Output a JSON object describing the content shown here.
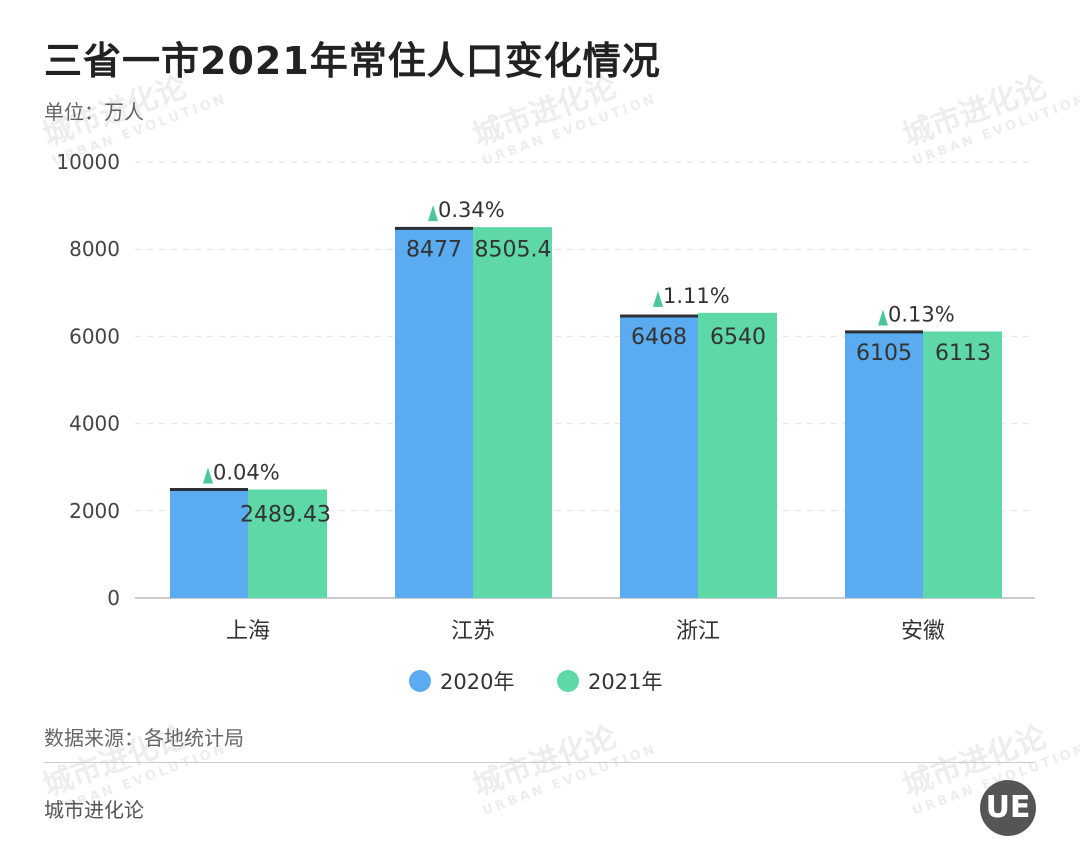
{
  "chart_data": {
    "type": "bar",
    "title": "三省一市2021年常住人口变化情况",
    "unit_label": "单位：万人",
    "categories": [
      "上海",
      "江苏",
      "浙江",
      "安徽"
    ],
    "series": [
      {
        "name": "2020年",
        "color": "#5aabf0",
        "values": [
          2488.4,
          8477,
          6468,
          6105
        ],
        "labels": [
          "",
          "8477",
          "6468",
          "6105"
        ]
      },
      {
        "name": "2021年",
        "color": "#5fd8a8",
        "values": [
          2489.43,
          8505.4,
          6540,
          6113
        ],
        "labels": [
          "2489.43",
          "8505.4",
          "6540",
          "6113"
        ]
      }
    ],
    "growth_labels": [
      "0.04%",
      "0.34%",
      "1.11%",
      "0.13%"
    ],
    "growth_marker_color": "#4cc79a",
    "reference_line_color": "#2b2f36",
    "ylim": [
      0,
      10000
    ],
    "yticks": [
      "0",
      "2000",
      "4000",
      "6000",
      "8000",
      "10000"
    ],
    "ytick_values": [
      0,
      2000,
      4000,
      6000,
      8000,
      10000
    ],
    "grid": true,
    "legend_position": "bottom"
  },
  "footer": {
    "source": "数据来源：各地统计局",
    "brand": "城市进化论"
  },
  "watermark": {
    "text": "城市进化论",
    "subtext": "URBAN EVOLUTION",
    "logo": "UE"
  }
}
